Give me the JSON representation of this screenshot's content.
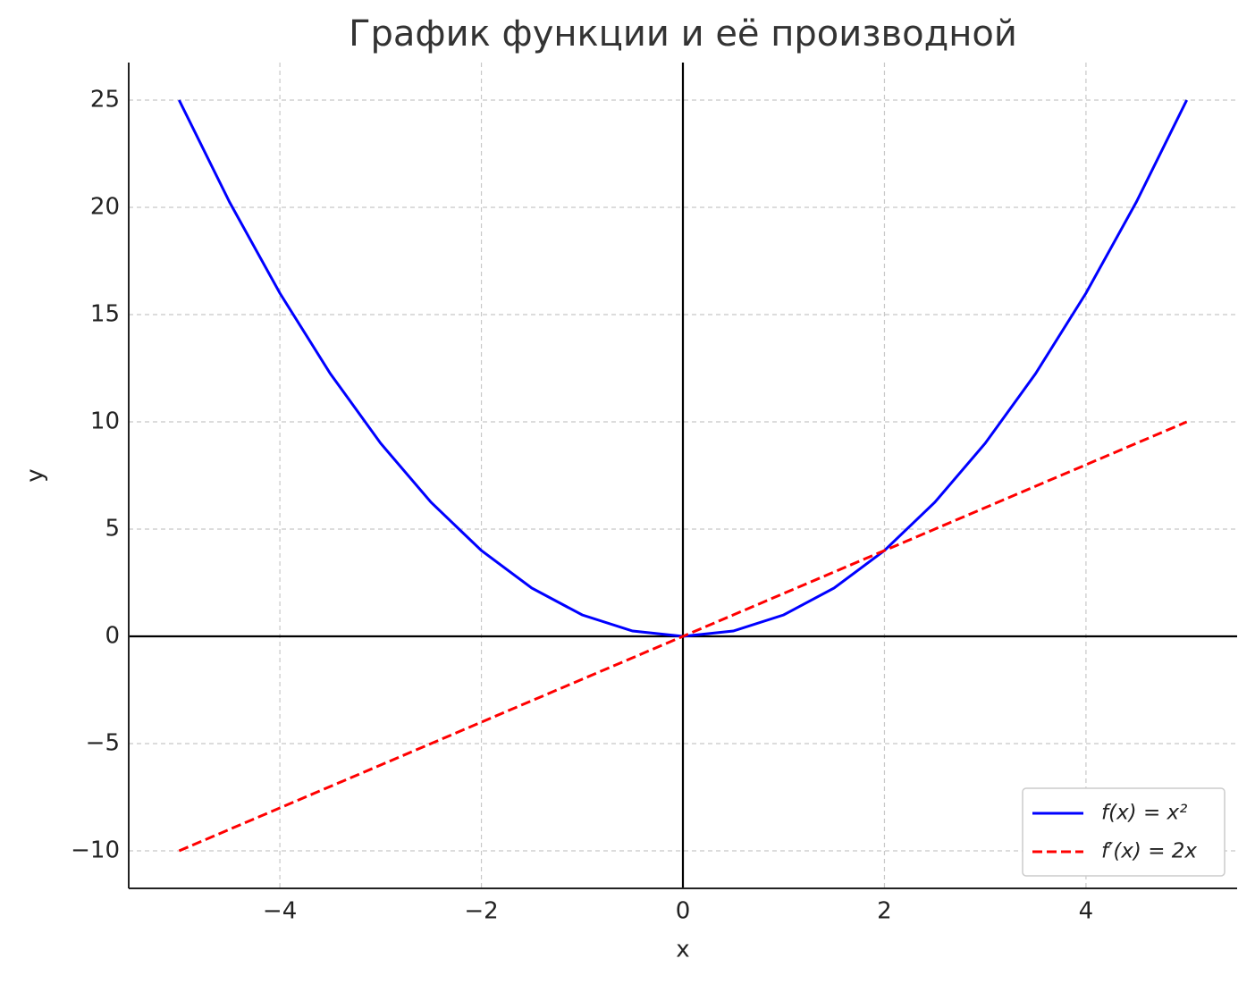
{
  "chart_data": {
    "type": "line",
    "title": "График функции и её производной",
    "xlabel": "x",
    "ylabel": "y",
    "x": [
      -5,
      -4.5,
      -4,
      -3.5,
      -3,
      -2.5,
      -2,
      -1.5,
      -1,
      -0.5,
      0,
      0.5,
      1,
      1.5,
      2,
      2.5,
      3,
      3.5,
      4,
      4.5,
      5
    ],
    "series": [
      {
        "name": "f(x) = x²",
        "color": "#0000ff",
        "dash": "solid",
        "values": [
          25,
          20.25,
          16,
          12.25,
          9,
          6.25,
          4,
          2.25,
          1,
          0.25,
          0,
          0.25,
          1,
          2.25,
          4,
          6.25,
          9,
          12.25,
          16,
          20.25,
          25
        ]
      },
      {
        "name": "f′(x) = 2x",
        "color": "#ff0000",
        "dash": "dashed",
        "values": [
          -10,
          -9,
          -8,
          -7,
          -6,
          -5,
          -4,
          -3,
          -2,
          -1,
          0,
          1,
          2,
          3,
          4,
          5,
          6,
          7,
          8,
          9,
          10
        ]
      }
    ],
    "xlim": [
      -5.5,
      5.5
    ],
    "ylim": [
      -11.75,
      26.75
    ],
    "xticks": [
      {
        "value": -4,
        "label": "−4"
      },
      {
        "value": -2,
        "label": "−2"
      },
      0,
      2,
      4
    ],
    "yticks": [
      {
        "value": -10,
        "label": "−10"
      },
      {
        "value": -5,
        "label": "−5"
      },
      0,
      5,
      10,
      15,
      20,
      25
    ],
    "grid": true,
    "zero_lines": true,
    "legend": "lower right"
  }
}
